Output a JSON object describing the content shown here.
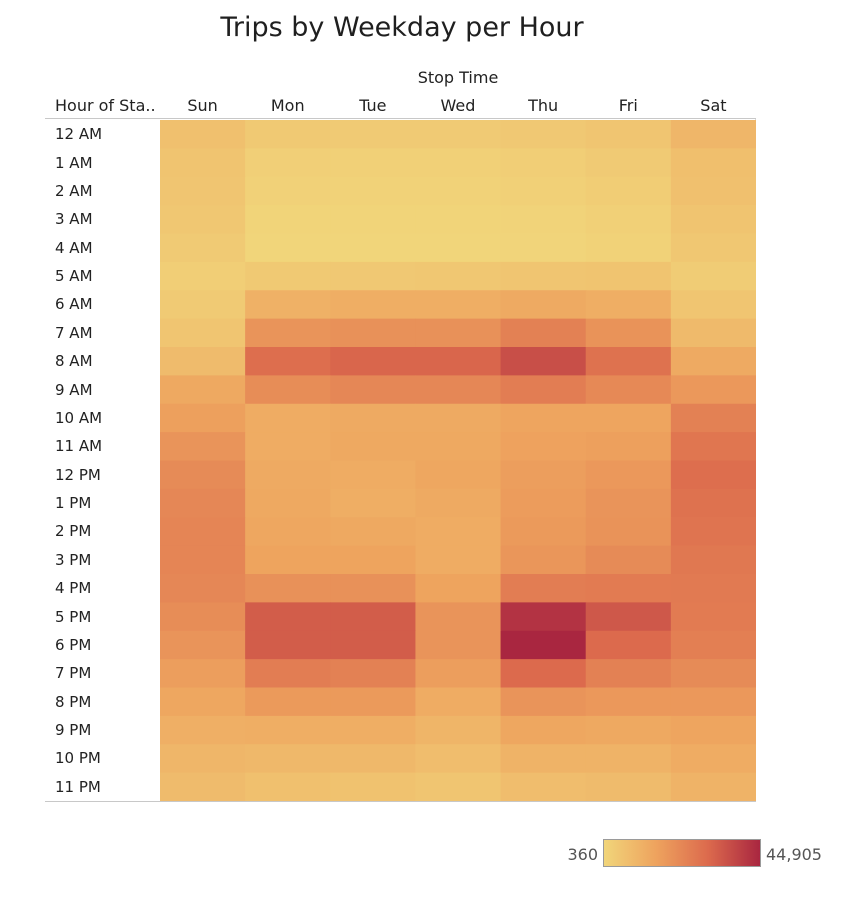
{
  "chart_data": {
    "type": "heatmap",
    "title": "Trips by Weekday per Hour",
    "column_field": "Stop Time",
    "row_field": "Hour of Sta..",
    "columns": [
      "Sun",
      "Mon",
      "Tue",
      "Wed",
      "Thu",
      "Fri",
      "Sat"
    ],
    "rows": [
      "12 AM",
      "1 AM",
      "2 AM",
      "3 AM",
      "4 AM",
      "5 AM",
      "6 AM",
      "7 AM",
      "8 AM",
      "9 AM",
      "10 AM",
      "11 AM",
      "12 PM",
      "1 PM",
      "2 PM",
      "3 PM",
      "4 PM",
      "5 PM",
      "6 PM",
      "7 PM",
      "8 PM",
      "9 PM",
      "10 PM",
      "11 PM"
    ],
    "values": [
      [
        6500,
        4000,
        3500,
        3500,
        4200,
        5000,
        9500
      ],
      [
        5500,
        2000,
        1800,
        1800,
        2500,
        3500,
        7000
      ],
      [
        5000,
        1500,
        1200,
        1200,
        1800,
        2800,
        6500
      ],
      [
        4500,
        800,
        700,
        700,
        1000,
        1800,
        5500
      ],
      [
        3500,
        500,
        400,
        360,
        600,
        1200,
        4500
      ],
      [
        2500,
        4000,
        4200,
        4400,
        5000,
        5500,
        3000
      ],
      [
        3500,
        11000,
        12000,
        12000,
        13000,
        12000,
        5000
      ],
      [
        5000,
        19000,
        20000,
        20000,
        24000,
        19500,
        8500
      ],
      [
        8000,
        29000,
        31000,
        31000,
        36000,
        28000,
        13000
      ],
      [
        13500,
        21000,
        22500,
        22500,
        25000,
        22000,
        18000
      ],
      [
        16000,
        12500,
        13000,
        13000,
        14500,
        14500,
        24000
      ],
      [
        19000,
        12500,
        13500,
        13500,
        15500,
        16000,
        27000
      ],
      [
        21500,
        13000,
        12500,
        14000,
        16500,
        18000,
        29000
      ],
      [
        22500,
        13500,
        12000,
        13000,
        17000,
        19000,
        28000
      ],
      [
        23000,
        14000,
        13500,
        12500,
        17500,
        19500,
        27500
      ],
      [
        23000,
        15000,
        15000,
        12500,
        18500,
        21500,
        26500
      ],
      [
        22500,
        20000,
        20000,
        15000,
        25000,
        25500,
        26000
      ],
      [
        21000,
        33000,
        33000,
        19000,
        42000,
        34000,
        25500
      ],
      [
        19000,
        33000,
        33000,
        19000,
        44905,
        30000,
        24500
      ],
      [
        16500,
        25000,
        24000,
        16500,
        30000,
        24000,
        21500
      ],
      [
        14000,
        17500,
        17500,
        12500,
        19000,
        18000,
        18000
      ],
      [
        11500,
        12000,
        12000,
        10000,
        14000,
        13500,
        14500
      ],
      [
        9500,
        9000,
        9000,
        7500,
        10500,
        10500,
        12500
      ],
      [
        8000,
        6500,
        6000,
        5000,
        7500,
        8000,
        10500
      ]
    ],
    "color_range": [
      360,
      44905
    ],
    "color_scale": [
      "#f1d57a",
      "#eea35e",
      "#dc6a4d",
      "#a92640"
    ],
    "legend": {
      "min_label": "360",
      "max_label": "44,905",
      "placement": "bottom-right"
    }
  }
}
